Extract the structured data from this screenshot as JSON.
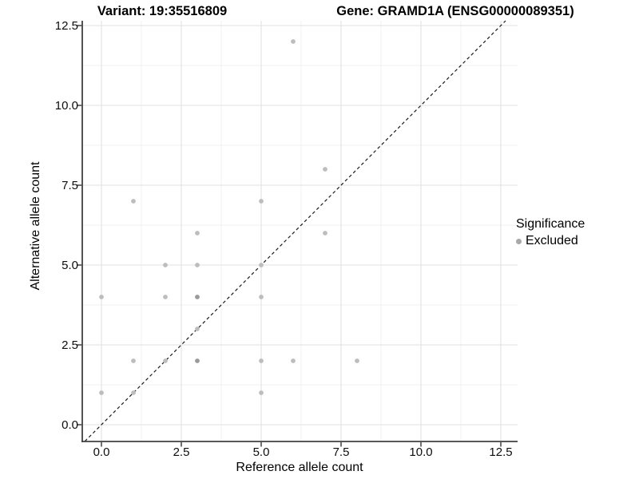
{
  "chart_data": {
    "type": "scatter",
    "title_left": "Variant: 19:35516809",
    "title_right": "Gene: GRAMD1A (ENSG00000089351)",
    "xlabel": "Reference allele count",
    "ylabel": "Alternative allele count",
    "xlim": [
      -0.55,
      13.05
    ],
    "ylim": [
      -0.55,
      13.05
    ],
    "grid": "major-and-minor",
    "ticks": {
      "values": [
        0,
        2.5,
        5,
        7.5,
        10,
        12.5
      ],
      "labels": [
        "0.0",
        "2.5",
        "5.0",
        "7.5",
        "10.0",
        "12.5"
      ]
    },
    "minor_ticks": [
      1.25,
      3.75,
      6.25,
      8.75,
      11.25
    ],
    "identity_line": {
      "type": "y=x",
      "style": "dashed"
    },
    "points": [
      {
        "x": 0,
        "y": 1
      },
      {
        "x": 0,
        "y": 4
      },
      {
        "x": 1,
        "y": 1
      },
      {
        "x": 1,
        "y": 2
      },
      {
        "x": 1,
        "y": 7
      },
      {
        "x": 2,
        "y": 2
      },
      {
        "x": 2,
        "y": 4
      },
      {
        "x": 2,
        "y": 5
      },
      {
        "x": 3,
        "y": 2,
        "dense": true
      },
      {
        "x": 3,
        "y": 3
      },
      {
        "x": 3,
        "y": 4,
        "dense": true
      },
      {
        "x": 3,
        "y": 5
      },
      {
        "x": 3,
        "y": 6
      },
      {
        "x": 5,
        "y": 1
      },
      {
        "x": 5,
        "y": 2
      },
      {
        "x": 5,
        "y": 4
      },
      {
        "x": 5,
        "y": 5
      },
      {
        "x": 5,
        "y": 7
      },
      {
        "x": 6,
        "y": 2
      },
      {
        "x": 6,
        "y": 12
      },
      {
        "x": 7,
        "y": 6
      },
      {
        "x": 7,
        "y": 8
      },
      {
        "x": 8,
        "y": 2
      }
    ],
    "legend": {
      "title": "Significance",
      "position": "right",
      "items": [
        {
          "label": "Excluded",
          "color": "#A9A9A9"
        }
      ]
    },
    "colors": {
      "point": "#BDBDBD",
      "point_dense": "#9A9A9A",
      "grid_major": "#E2E2E2",
      "grid_minor": "#F0F0F0",
      "axis_line": "#404040",
      "tick_mark": "#333333",
      "tick_text": "#0D0D0D",
      "identity_line": "#1A1A1A",
      "background": "#FFFFFF"
    }
  }
}
